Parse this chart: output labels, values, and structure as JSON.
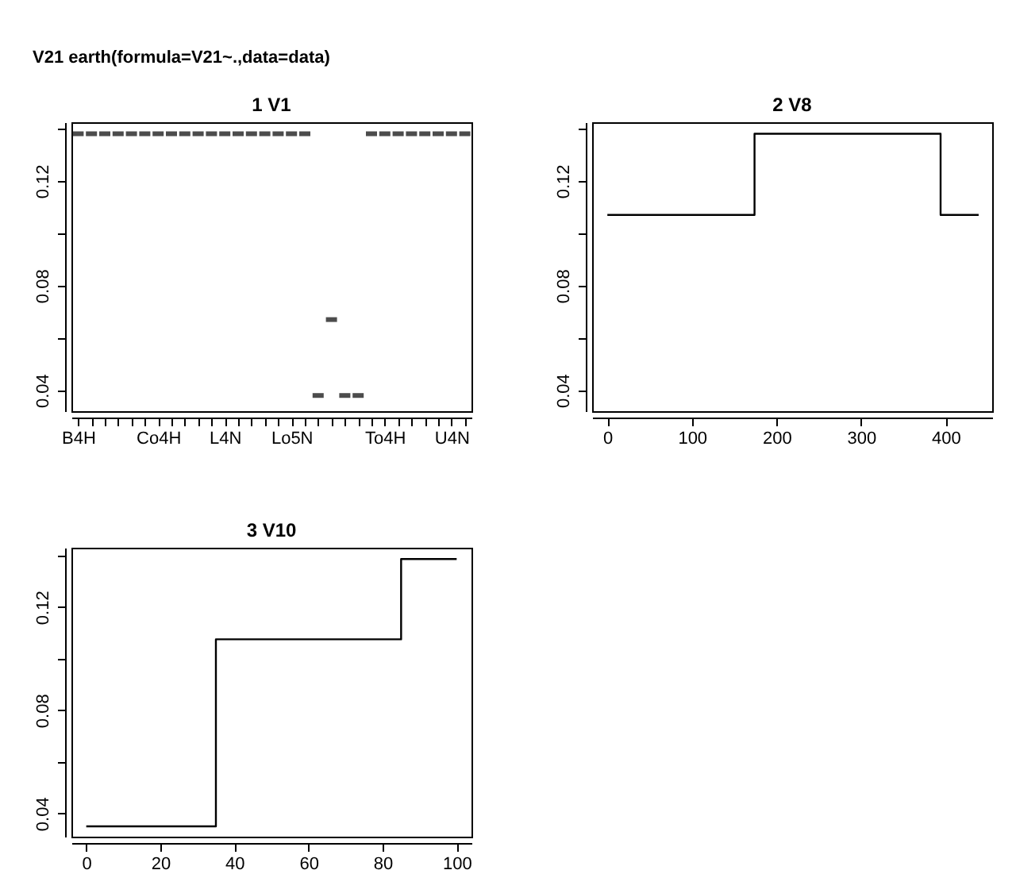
{
  "chart_data": [
    {
      "type": "scatter",
      "title": "1  V1",
      "annotations": [
        "V21   earth(formula=V21~.,data=data)"
      ],
      "categories": [
        "B4H",
        null,
        null,
        null,
        null,
        null,
        "Co4H",
        null,
        null,
        null,
        null,
        "L4N",
        null,
        null,
        null,
        null,
        "Lo5N",
        null,
        null,
        null,
        null,
        null,
        null,
        "To4H",
        null,
        null,
        null,
        null,
        "U4N",
        null
      ],
      "series": [
        {
          "color": "#000000",
          "values": [
            0.138,
            0.138,
            0.138,
            0.138,
            0.138,
            0.138,
            0.138,
            0.138,
            0.138,
            0.138,
            0.138,
            0.138,
            0.138,
            0.138,
            0.138,
            0.138,
            0.138,
            0.138,
            0.038,
            0.067,
            0.038,
            0.038,
            0.138,
            0.138,
            0.138,
            0.138,
            0.138,
            0.138,
            0.138,
            0.138
          ]
        }
      ],
      "ylim": [
        0.032,
        0.1424
      ],
      "yticks": [
        0.04,
        {
          "value": 0.06,
          "label": null
        },
        0.08,
        {
          "value": 0.1,
          "label": null
        },
        0.12,
        {
          "value": 0.14,
          "label": null
        }
      ]
    },
    {
      "type": "step",
      "title": "2  V8",
      "x": [
        0,
        174,
        394,
        439
      ],
      "series": [
        {
          "color": "#000000",
          "values": [
            0.107,
            0.138,
            0.107,
            0.107
          ]
        }
      ],
      "xlim": [
        -18,
        455
      ],
      "xticks": [
        0,
        100,
        200,
        300,
        400
      ],
      "ylim": [
        0.032,
        0.1424
      ],
      "yticks": [
        0.04,
        {
          "value": 0.06,
          "label": null
        },
        0.08,
        {
          "value": 0.1,
          "label": null
        },
        0.12,
        {
          "value": 0.14,
          "label": null
        }
      ]
    },
    {
      "type": "step",
      "title": "3  V10",
      "x": [
        0,
        35,
        85,
        100
      ],
      "series": [
        {
          "color": "#000000",
          "values": [
            0.035,
            0.1075,
            0.1386,
            0.1386
          ]
        }
      ],
      "xlim": [
        -4,
        104
      ],
      "xticks": [
        0,
        20,
        40,
        60,
        80,
        100
      ],
      "ylim": [
        0.031,
        0.143
      ],
      "yticks": [
        0.04,
        {
          "value": 0.06,
          "label": null
        },
        0.08,
        {
          "value": 0.1,
          "label": null
        },
        0.12,
        {
          "value": 0.14,
          "label": null
        }
      ]
    }
  ]
}
